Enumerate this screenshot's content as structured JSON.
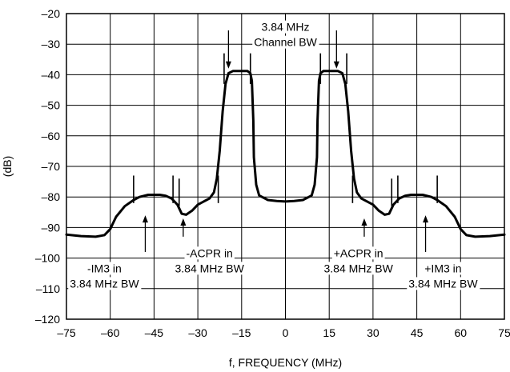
{
  "chart_data": {
    "type": "line",
    "title": "",
    "xlabel": "f, FREQUENCY (MHz)",
    "ylabel": "(dB)",
    "xlim": [
      -75,
      75
    ],
    "ylim": [
      -120,
      -20
    ],
    "xticks": [
      -75,
      -60,
      -45,
      -30,
      -15,
      0,
      15,
      30,
      45,
      60,
      75
    ],
    "yticks": [
      -20,
      -30,
      -40,
      -50,
      -60,
      -70,
      -80,
      -90,
      -100,
      -110,
      -120
    ],
    "grid": true,
    "series": [
      {
        "x": [
          -75,
          -70,
          -65,
          -62,
          -60,
          -58,
          -55,
          -52,
          -50,
          -47,
          -45,
          -43,
          -41,
          -39,
          -37,
          -35.5,
          -34,
          -32,
          -30,
          -28,
          -26,
          -24.5,
          -23.5,
          -22.5,
          -21.5,
          -20.5,
          -19.5,
          -18,
          -15,
          -13,
          -12,
          -11.5,
          -11,
          -10.8,
          -10,
          -9,
          -6,
          -3,
          0,
          3,
          6,
          9,
          10,
          10.8,
          11,
          11.5,
          12,
          13,
          15,
          18,
          19.5,
          20.5,
          21.5,
          22.5,
          23.5,
          24.5,
          26,
          28,
          30,
          32,
          34,
          35.5,
          37,
          39,
          41,
          43,
          45,
          47,
          50,
          52,
          55,
          58,
          60,
          62,
          65,
          70,
          75
        ],
        "y": [
          -92.3,
          -92.8,
          -93,
          -92.5,
          -90.5,
          -86.5,
          -83,
          -81,
          -80,
          -79.3,
          -79.3,
          -79.3,
          -79.6,
          -80.5,
          -82.5,
          -85.5,
          -85.8,
          -84.5,
          -82.5,
          -81.5,
          -80.5,
          -78.5,
          -74,
          -65,
          -52,
          -43,
          -39.5,
          -38.8,
          -38.8,
          -38.8,
          -39.5,
          -42,
          -55,
          -67,
          -76,
          -79.5,
          -81,
          -81.3,
          -81.5,
          -81.3,
          -81,
          -79.5,
          -76,
          -67,
          -55,
          -42,
          -39.5,
          -38.8,
          -38.8,
          -38.8,
          -39.5,
          -43,
          -52,
          -65,
          -74,
          -78.5,
          -80.5,
          -81.5,
          -82.5,
          -84.5,
          -85.8,
          -85.5,
          -82.5,
          -80.5,
          -79.6,
          -79.3,
          -79.3,
          -79.3,
          -80,
          -81,
          -83,
          -86.5,
          -90.5,
          -92.5,
          -93,
          -92.8,
          -92.3
        ]
      }
    ],
    "band_markers": [
      {
        "x": -52,
        "y_top": -73,
        "y_bottom": -82
      },
      {
        "x": -38.5,
        "y_top": -73,
        "y_bottom": -82
      },
      {
        "x": -36.4,
        "y_top": -74,
        "y_bottom": -83
      },
      {
        "x": -23,
        "y_top": -73,
        "y_bottom": -82
      },
      {
        "x": -21,
        "y_top": -33,
        "y_bottom": -43
      },
      {
        "x": -12,
        "y_top": -33,
        "y_bottom": -43
      },
      {
        "x": 12,
        "y_top": -33,
        "y_bottom": -43
      },
      {
        "x": 21,
        "y_top": -33,
        "y_bottom": -43
      },
      {
        "x": 23,
        "y_top": -73,
        "y_bottom": -82
      },
      {
        "x": 36.4,
        "y_top": -74,
        "y_bottom": -83
      },
      {
        "x": 38.5,
        "y_top": -73,
        "y_bottom": -82
      },
      {
        "x": 52,
        "y_top": -73,
        "y_bottom": -82
      }
    ],
    "annotations": [
      {
        "lines": [
          "3.84 MHz",
          "Channel BW"
        ],
        "x": 0,
        "y": -22,
        "anchor": "middle"
      },
      {
        "lines": [
          "-IM3 in",
          "3.84 MHz BW"
        ],
        "x": -62,
        "y": -101,
        "anchor": "middle"
      },
      {
        "lines": [
          "-ACPR in",
          "3.84 MHz BW"
        ],
        "x": -26,
        "y": -96,
        "anchor": "middle"
      },
      {
        "lines": [
          "+ACPR in",
          "3.84 MHz BW"
        ],
        "x": 25,
        "y": -96,
        "anchor": "middle"
      },
      {
        "lines": [
          "+IM3 in",
          "3.84 MHz BW"
        ],
        "x": 54,
        "y": -101,
        "anchor": "middle"
      }
    ],
    "arrows": [
      {
        "x": -19.5,
        "y_from": -25.5,
        "y_to": -38
      },
      {
        "x": 17.5,
        "y_from": -25.5,
        "y_to": -38
      },
      {
        "x": -48,
        "y_from": -98,
        "y_to": -86
      },
      {
        "x": -35,
        "y_from": -93,
        "y_to": -87
      },
      {
        "x": 27,
        "y_from": -93,
        "y_to": -87
      },
      {
        "x": 48,
        "y_from": -98,
        "y_to": -86
      }
    ]
  }
}
